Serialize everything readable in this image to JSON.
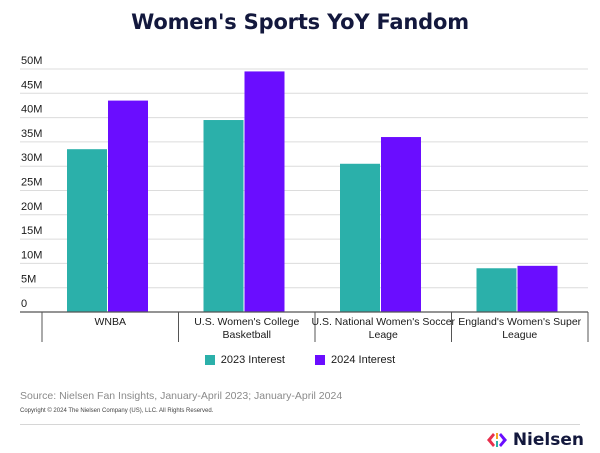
{
  "chart_data": {
    "type": "bar",
    "title": "Women's Sports YoY Fandom",
    "categories": [
      [
        "WNBA"
      ],
      [
        "U.S. Women's College",
        "Basketball"
      ],
      [
        "U.S. National Women's Soccer",
        "Leage"
      ],
      [
        "England's Women's Super",
        "League"
      ]
    ],
    "series": [
      {
        "name": "2023 Interest",
        "color": "#2bb0aa",
        "values": [
          33.5,
          39.5,
          30.5,
          9
        ]
      },
      {
        "name": "2024 Interest",
        "color": "#6a0dff",
        "values": [
          43.5,
          49.5,
          36,
          9.5
        ]
      }
    ],
    "y_ticks": [
      "0",
      "5M",
      "10M",
      "15M",
      "20M",
      "25M",
      "30M",
      "35M",
      "40M",
      "45M",
      "50M"
    ],
    "ylim": [
      0,
      50
    ],
    "grid": true,
    "legend_position": "bottom"
  },
  "source": "Source: Nielsen Fan Insights, January-April 2023; January-April 2024",
  "copyright": "Copyright © 2024 The Nielsen Company (US), LLC. All Rights Reserved.",
  "brand": {
    "name": "Nielsen",
    "colors": [
      "#e8304d",
      "#f5a623",
      "#2bb0aa",
      "#6a0dff"
    ]
  }
}
